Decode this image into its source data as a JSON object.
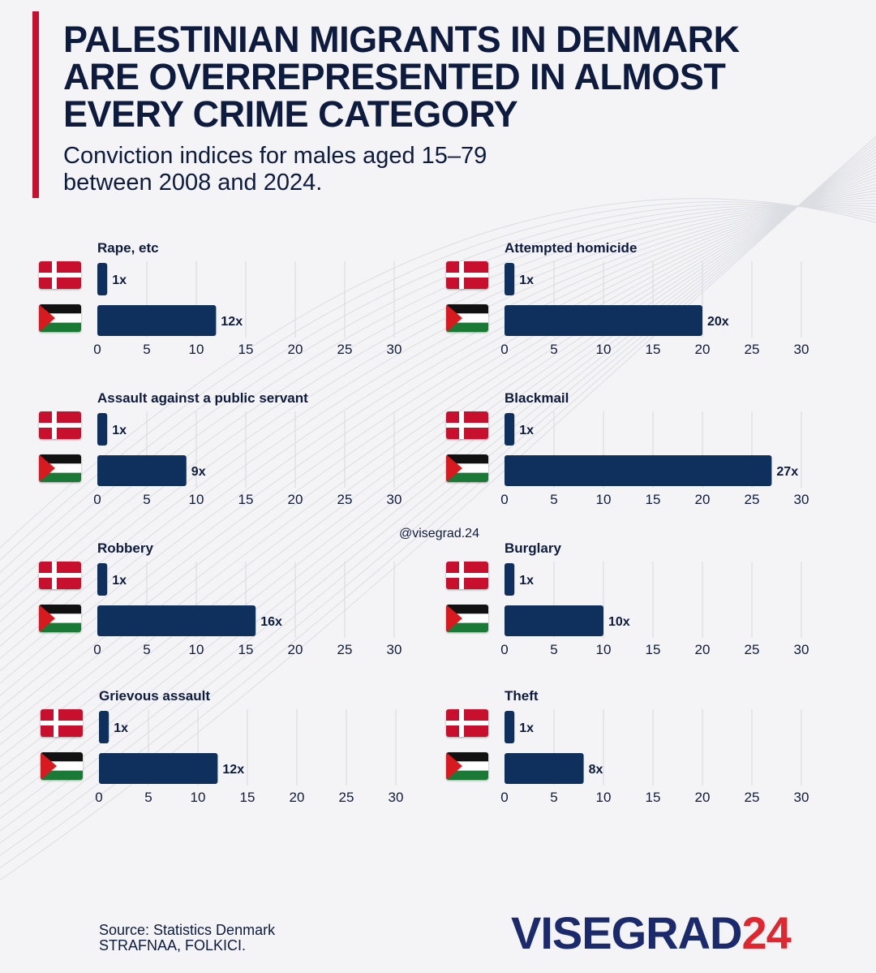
{
  "title_lines": [
    "PALESTINIAN MIGRANTS IN DENMARK",
    "ARE OVERREPRESENTED IN ALMOST",
    "EVERY CRIME CATEGORY"
  ],
  "subtitle_lines": [
    "Conviction indices for males aged 15–79",
    "between 2008 and 2024."
  ],
  "watermark": "@visegrad.24",
  "source_lines": [
    "Source: Statistics Denmark",
    "STRAFNAA, FOLKICI."
  ],
  "logo": {
    "part1": "VISEGRAD",
    "part2": "24"
  },
  "colors": {
    "bar": "#0f2f5c",
    "accent": "#c8102e",
    "text": "#0d1b3e",
    "logo_blue": "#1a2a6c",
    "logo_red": "#e0262e"
  },
  "icons": [
    "denmark-flag-icon",
    "palestine-flag-icon"
  ],
  "chart_data": [
    {
      "type": "bar",
      "orientation": "horizontal",
      "title": "Rape, etc",
      "categories": [
        "Denmark",
        "Palestine"
      ],
      "values": [
        1,
        12
      ],
      "labels": [
        "1x",
        "12x"
      ],
      "xlim": [
        0,
        30
      ],
      "ticks": [
        0,
        5,
        10,
        15,
        20,
        25,
        30
      ]
    },
    {
      "type": "bar",
      "orientation": "horizontal",
      "title": "Attempted homicide",
      "categories": [
        "Denmark",
        "Palestine"
      ],
      "values": [
        1,
        20
      ],
      "labels": [
        "1x",
        "20x"
      ],
      "xlim": [
        0,
        30
      ],
      "ticks": [
        0,
        5,
        10,
        15,
        20,
        25,
        30
      ]
    },
    {
      "type": "bar",
      "orientation": "horizontal",
      "title": "Assault against a public servant",
      "categories": [
        "Denmark",
        "Palestine"
      ],
      "values": [
        1,
        9
      ],
      "labels": [
        "1x",
        "9x"
      ],
      "xlim": [
        0,
        30
      ],
      "ticks": [
        0,
        5,
        10,
        15,
        20,
        25,
        30
      ]
    },
    {
      "type": "bar",
      "orientation": "horizontal",
      "title": "Blackmail",
      "categories": [
        "Denmark",
        "Palestine"
      ],
      "values": [
        1,
        27
      ],
      "labels": [
        "1x",
        "27x"
      ],
      "xlim": [
        0,
        30
      ],
      "ticks": [
        0,
        5,
        10,
        15,
        20,
        25,
        30
      ]
    },
    {
      "type": "bar",
      "orientation": "horizontal",
      "title": "Robbery",
      "categories": [
        "Denmark",
        "Palestine"
      ],
      "values": [
        1,
        16
      ],
      "labels": [
        "1x",
        "16x"
      ],
      "xlim": [
        0,
        30
      ],
      "ticks": [
        0,
        5,
        10,
        15,
        20,
        25,
        30
      ]
    },
    {
      "type": "bar",
      "orientation": "horizontal",
      "title": "Burglary",
      "categories": [
        "Denmark",
        "Palestine"
      ],
      "values": [
        1,
        10
      ],
      "labels": [
        "1x",
        "10x"
      ],
      "xlim": [
        0,
        30
      ],
      "ticks": [
        0,
        5,
        10,
        15,
        20,
        25,
        30
      ]
    },
    {
      "type": "bar",
      "orientation": "horizontal",
      "title": "Grievous assault",
      "categories": [
        "Denmark",
        "Palestine"
      ],
      "values": [
        1,
        12
      ],
      "labels": [
        "1x",
        "12x"
      ],
      "xlim": [
        0,
        30
      ],
      "ticks": [
        0,
        5,
        10,
        15,
        20,
        25,
        30
      ]
    },
    {
      "type": "bar",
      "orientation": "horizontal",
      "title": "Theft",
      "categories": [
        "Denmark",
        "Palestine"
      ],
      "values": [
        1,
        8
      ],
      "labels": [
        "1x",
        "8x"
      ],
      "xlim": [
        0,
        30
      ],
      "ticks": [
        0,
        5,
        10,
        15,
        20,
        25,
        30
      ]
    }
  ]
}
